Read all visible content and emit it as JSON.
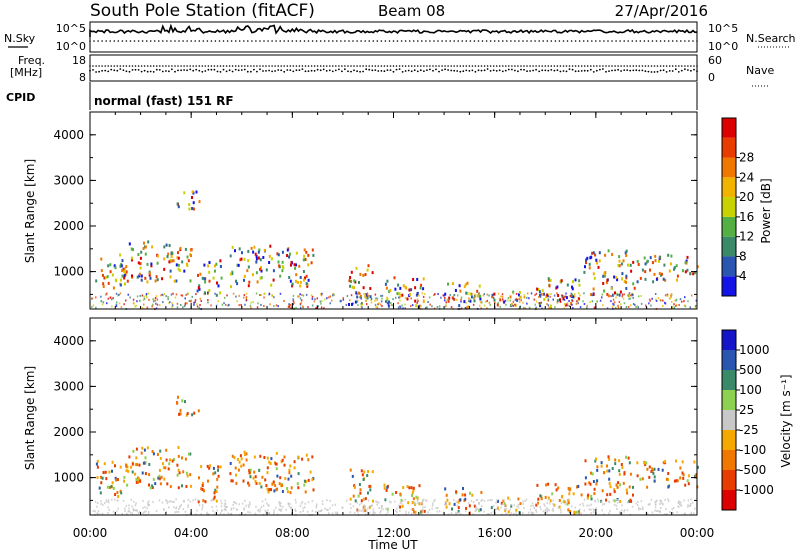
{
  "header": {
    "station": "South Pole Station (fitACF)",
    "beam": "Beam 08",
    "date": "27/Apr/2016"
  },
  "top_panels": {
    "nsky_label": "N.Sky",
    "nsky_ticks": [
      "10^5",
      "10^0"
    ],
    "nsearch_label": "N.Search",
    "nsearch_ticks": [
      "10^5",
      "10^0"
    ],
    "freq_label": "Freq.",
    "freq_unit": "[MHz]",
    "freq_ticks": [
      "18",
      "8"
    ],
    "nave_label": "Nave",
    "nave_ticks": [
      "60",
      "0"
    ],
    "cpid_label": "CPID",
    "cpid_value": "normal (fast) 151 RF"
  },
  "colors": {
    "power_scale": [
      "#1414e6",
      "#2a55b0",
      "#3a8a6a",
      "#55b043",
      "#c8d200",
      "#f0b400",
      "#f07800",
      "#e83c00",
      "#dc0000"
    ],
    "velocity_scale": [
      "#dc0000",
      "#e83c00",
      "#f07800",
      "#f5a800",
      "#c8c8c8",
      "#8cd250",
      "#3a8a6a",
      "#2a55b0",
      "#1414c8"
    ]
  },
  "chart_data": [
    {
      "type": "heatmap",
      "title": "Power",
      "ylabel": "Slant Range [km]",
      "ylim": [
        180,
        4500
      ],
      "yticks": [
        "1000",
        "2000",
        "3000",
        "4000"
      ],
      "x_ticks": [
        "00:00",
        "04:00",
        "08:00",
        "12:00",
        "16:00",
        "20:00",
        "00:00"
      ],
      "colorbar_label": "Power [dB]",
      "colorbar_ticks": [
        "4",
        "8",
        "12",
        "16",
        "20",
        "24",
        "28"
      ]
    },
    {
      "type": "heatmap",
      "title": "Velocity",
      "ylabel": "Slant Range [km]",
      "ylim": [
        180,
        4500
      ],
      "yticks": [
        "1000",
        "2000",
        "3000",
        "4000"
      ],
      "x_ticks": [
        "00:00",
        "04:00",
        "08:00",
        "12:00",
        "16:00",
        "20:00",
        "00:00"
      ],
      "xlabel": "Time UT",
      "colorbar_label": "Velocity [m s⁻¹]",
      "colorbar_ticks": [
        "1000",
        "500",
        "100",
        "25",
        "-25",
        "-100",
        "-500",
        "-1000"
      ]
    }
  ]
}
